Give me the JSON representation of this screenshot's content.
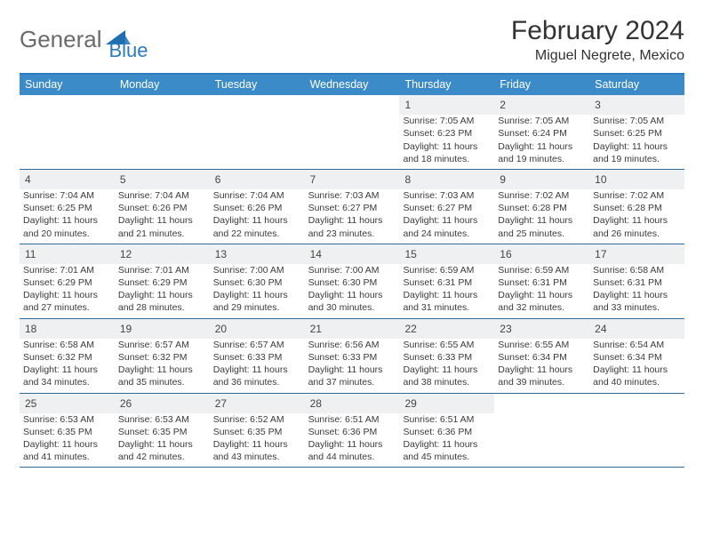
{
  "brand": {
    "general": "General",
    "blue": "Blue"
  },
  "title": "February 2024",
  "location": "Miguel Negrete, Mexico",
  "colors": {
    "header_bg": "#3b8bc9",
    "border": "#2b6b9f",
    "daynum_bg": "#eef0f1",
    "text": "#333333",
    "accent": "#2b7bbf"
  },
  "weekdays": [
    "Sunday",
    "Monday",
    "Tuesday",
    "Wednesday",
    "Thursday",
    "Friday",
    "Saturday"
  ],
  "weeks": [
    [
      null,
      null,
      null,
      null,
      {
        "n": "1",
        "sunrise": "Sunrise: 7:05 AM",
        "sunset": "Sunset: 6:23 PM",
        "d1": "Daylight: 11 hours",
        "d2": "and 18 minutes."
      },
      {
        "n": "2",
        "sunrise": "Sunrise: 7:05 AM",
        "sunset": "Sunset: 6:24 PM",
        "d1": "Daylight: 11 hours",
        "d2": "and 19 minutes."
      },
      {
        "n": "3",
        "sunrise": "Sunrise: 7:05 AM",
        "sunset": "Sunset: 6:25 PM",
        "d1": "Daylight: 11 hours",
        "d2": "and 19 minutes."
      }
    ],
    [
      {
        "n": "4",
        "sunrise": "Sunrise: 7:04 AM",
        "sunset": "Sunset: 6:25 PM",
        "d1": "Daylight: 11 hours",
        "d2": "and 20 minutes."
      },
      {
        "n": "5",
        "sunrise": "Sunrise: 7:04 AM",
        "sunset": "Sunset: 6:26 PM",
        "d1": "Daylight: 11 hours",
        "d2": "and 21 minutes."
      },
      {
        "n": "6",
        "sunrise": "Sunrise: 7:04 AM",
        "sunset": "Sunset: 6:26 PM",
        "d1": "Daylight: 11 hours",
        "d2": "and 22 minutes."
      },
      {
        "n": "7",
        "sunrise": "Sunrise: 7:03 AM",
        "sunset": "Sunset: 6:27 PM",
        "d1": "Daylight: 11 hours",
        "d2": "and 23 minutes."
      },
      {
        "n": "8",
        "sunrise": "Sunrise: 7:03 AM",
        "sunset": "Sunset: 6:27 PM",
        "d1": "Daylight: 11 hours",
        "d2": "and 24 minutes."
      },
      {
        "n": "9",
        "sunrise": "Sunrise: 7:02 AM",
        "sunset": "Sunset: 6:28 PM",
        "d1": "Daylight: 11 hours",
        "d2": "and 25 minutes."
      },
      {
        "n": "10",
        "sunrise": "Sunrise: 7:02 AM",
        "sunset": "Sunset: 6:28 PM",
        "d1": "Daylight: 11 hours",
        "d2": "and 26 minutes."
      }
    ],
    [
      {
        "n": "11",
        "sunrise": "Sunrise: 7:01 AM",
        "sunset": "Sunset: 6:29 PM",
        "d1": "Daylight: 11 hours",
        "d2": "and 27 minutes."
      },
      {
        "n": "12",
        "sunrise": "Sunrise: 7:01 AM",
        "sunset": "Sunset: 6:29 PM",
        "d1": "Daylight: 11 hours",
        "d2": "and 28 minutes."
      },
      {
        "n": "13",
        "sunrise": "Sunrise: 7:00 AM",
        "sunset": "Sunset: 6:30 PM",
        "d1": "Daylight: 11 hours",
        "d2": "and 29 minutes."
      },
      {
        "n": "14",
        "sunrise": "Sunrise: 7:00 AM",
        "sunset": "Sunset: 6:30 PM",
        "d1": "Daylight: 11 hours",
        "d2": "and 30 minutes."
      },
      {
        "n": "15",
        "sunrise": "Sunrise: 6:59 AM",
        "sunset": "Sunset: 6:31 PM",
        "d1": "Daylight: 11 hours",
        "d2": "and 31 minutes."
      },
      {
        "n": "16",
        "sunrise": "Sunrise: 6:59 AM",
        "sunset": "Sunset: 6:31 PM",
        "d1": "Daylight: 11 hours",
        "d2": "and 32 minutes."
      },
      {
        "n": "17",
        "sunrise": "Sunrise: 6:58 AM",
        "sunset": "Sunset: 6:31 PM",
        "d1": "Daylight: 11 hours",
        "d2": "and 33 minutes."
      }
    ],
    [
      {
        "n": "18",
        "sunrise": "Sunrise: 6:58 AM",
        "sunset": "Sunset: 6:32 PM",
        "d1": "Daylight: 11 hours",
        "d2": "and 34 minutes."
      },
      {
        "n": "19",
        "sunrise": "Sunrise: 6:57 AM",
        "sunset": "Sunset: 6:32 PM",
        "d1": "Daylight: 11 hours",
        "d2": "and 35 minutes."
      },
      {
        "n": "20",
        "sunrise": "Sunrise: 6:57 AM",
        "sunset": "Sunset: 6:33 PM",
        "d1": "Daylight: 11 hours",
        "d2": "and 36 minutes."
      },
      {
        "n": "21",
        "sunrise": "Sunrise: 6:56 AM",
        "sunset": "Sunset: 6:33 PM",
        "d1": "Daylight: 11 hours",
        "d2": "and 37 minutes."
      },
      {
        "n": "22",
        "sunrise": "Sunrise: 6:55 AM",
        "sunset": "Sunset: 6:33 PM",
        "d1": "Daylight: 11 hours",
        "d2": "and 38 minutes."
      },
      {
        "n": "23",
        "sunrise": "Sunrise: 6:55 AM",
        "sunset": "Sunset: 6:34 PM",
        "d1": "Daylight: 11 hours",
        "d2": "and 39 minutes."
      },
      {
        "n": "24",
        "sunrise": "Sunrise: 6:54 AM",
        "sunset": "Sunset: 6:34 PM",
        "d1": "Daylight: 11 hours",
        "d2": "and 40 minutes."
      }
    ],
    [
      {
        "n": "25",
        "sunrise": "Sunrise: 6:53 AM",
        "sunset": "Sunset: 6:35 PM",
        "d1": "Daylight: 11 hours",
        "d2": "and 41 minutes."
      },
      {
        "n": "26",
        "sunrise": "Sunrise: 6:53 AM",
        "sunset": "Sunset: 6:35 PM",
        "d1": "Daylight: 11 hours",
        "d2": "and 42 minutes."
      },
      {
        "n": "27",
        "sunrise": "Sunrise: 6:52 AM",
        "sunset": "Sunset: 6:35 PM",
        "d1": "Daylight: 11 hours",
        "d2": "and 43 minutes."
      },
      {
        "n": "28",
        "sunrise": "Sunrise: 6:51 AM",
        "sunset": "Sunset: 6:36 PM",
        "d1": "Daylight: 11 hours",
        "d2": "and 44 minutes."
      },
      {
        "n": "29",
        "sunrise": "Sunrise: 6:51 AM",
        "sunset": "Sunset: 6:36 PM",
        "d1": "Daylight: 11 hours",
        "d2": "and 45 minutes."
      },
      null,
      null
    ]
  ]
}
